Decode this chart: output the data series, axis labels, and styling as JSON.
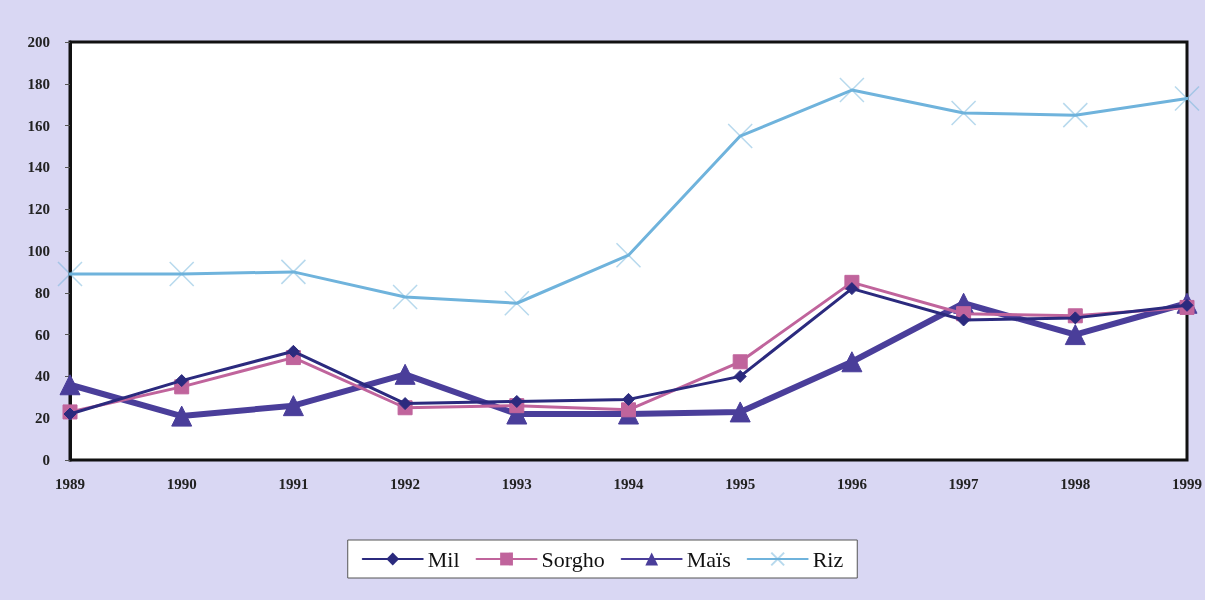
{
  "chart_data": {
    "type": "line",
    "categories": [
      "1989",
      "1990",
      "1991",
      "1992",
      "1993",
      "1994",
      "1995",
      "1996",
      "1997",
      "1998",
      "1999"
    ],
    "ylim": [
      0,
      200
    ],
    "yticks": [
      0,
      20,
      40,
      60,
      80,
      100,
      120,
      140,
      160,
      180,
      200
    ],
    "grid": false,
    "legend": "bottom",
    "line_style": "solid",
    "series": [
      {
        "name": "Mil",
        "color": "#2b2a7e",
        "marker": "diamond",
        "values": [
          22,
          38,
          52,
          27,
          28,
          29,
          40,
          82,
          67,
          68,
          74
        ]
      },
      {
        "name": "Sorgho",
        "color": "#c0649c",
        "marker": "square",
        "values": [
          23,
          35,
          49,
          25,
          26,
          24,
          47,
          85,
          70,
          69,
          73
        ]
      },
      {
        "name": "Maïs",
        "color": "#4a3e9a",
        "marker": "triangle",
        "values": [
          36,
          21,
          26,
          41,
          22,
          22,
          23,
          47,
          75,
          60,
          75
        ]
      },
      {
        "name": "Riz",
        "color": "#6fb3dc",
        "marker": "cross",
        "values": [
          89,
          89,
          90,
          78,
          75,
          98,
          155,
          177,
          166,
          165,
          173
        ]
      }
    ]
  }
}
